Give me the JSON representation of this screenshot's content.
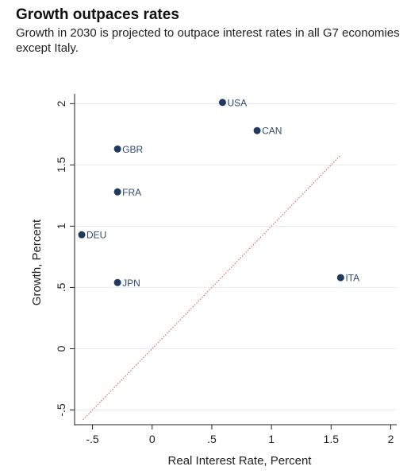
{
  "header": {
    "title": "Growth outpaces rates",
    "subtitle": "Growth in 2030 is projected to outpace interest rates in all G7 economies except Italy."
  },
  "colors": {
    "marker": "#1f3a5f",
    "label": "#2f4b70",
    "grid": "#e3ecef",
    "reference_line": "#d9534f",
    "axis": "#222222"
  },
  "chart_data": {
    "type": "scatter",
    "xlabel": "Real Interest Rate, Percent",
    "ylabel": "Growth, Percent",
    "xlim": [
      -0.65,
      2.05
    ],
    "ylim": [
      -0.62,
      2.08
    ],
    "xticks": [
      {
        "value": -0.5,
        "label": "-.5"
      },
      {
        "value": 0,
        "label": "0"
      },
      {
        "value": 0.5,
        "label": ".5"
      },
      {
        "value": 1,
        "label": "1"
      },
      {
        "value": 1.5,
        "label": "1.5"
      },
      {
        "value": 2,
        "label": "2"
      }
    ],
    "yticks": [
      {
        "value": -0.5,
        "label": "-.5"
      },
      {
        "value": 0,
        "label": "0"
      },
      {
        "value": 0.5,
        "label": ".5"
      },
      {
        "value": 1,
        "label": "1"
      },
      {
        "value": 1.5,
        "label": "1.5"
      },
      {
        "value": 2,
        "label": "2"
      }
    ],
    "grid": "horizontal",
    "points": [
      {
        "label": "USA",
        "x": 0.59,
        "y": 2.01
      },
      {
        "label": "CAN",
        "x": 0.88,
        "y": 1.78
      },
      {
        "label": "GBR",
        "x": -0.29,
        "y": 1.63
      },
      {
        "label": "FRA",
        "x": -0.29,
        "y": 1.28
      },
      {
        "label": "DEU",
        "x": -0.59,
        "y": 0.93
      },
      {
        "label": "JPN",
        "x": -0.29,
        "y": 0.54
      },
      {
        "label": "ITA",
        "x": 1.58,
        "y": 0.58
      }
    ],
    "reference_line": {
      "x": [
        -0.58,
        1.58
      ],
      "y": [
        -0.58,
        1.58
      ]
    }
  }
}
